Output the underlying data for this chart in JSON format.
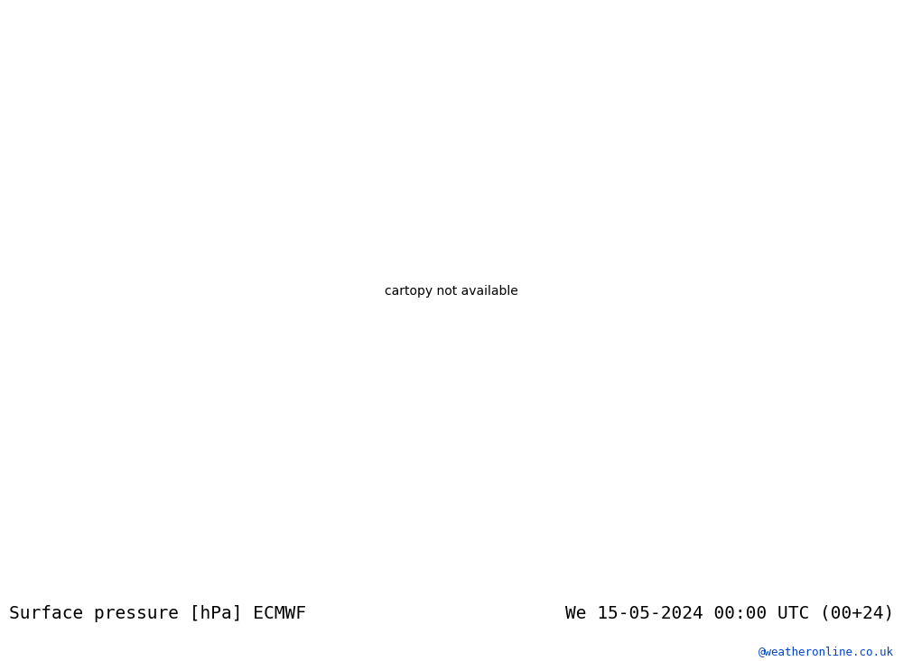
{
  "title_left": "Surface pressure [hPa] ECMWF",
  "title_right": "We 15-05-2024 00:00 UTC (00+24)",
  "watermark": "@weatheronline.co.uk",
  "background_color": "#ffffff",
  "map_outer_color": "#d0d0d0",
  "ocean_color": "#f2f2f2",
  "land_color": "#b8e0a0",
  "contour_low_color": "#0000dd",
  "contour_high_color": "#dd0000",
  "contour_mid_color": "#000000",
  "font_size_title": 14,
  "font_size_watermark": 9,
  "watermark_color": "#0044cc"
}
